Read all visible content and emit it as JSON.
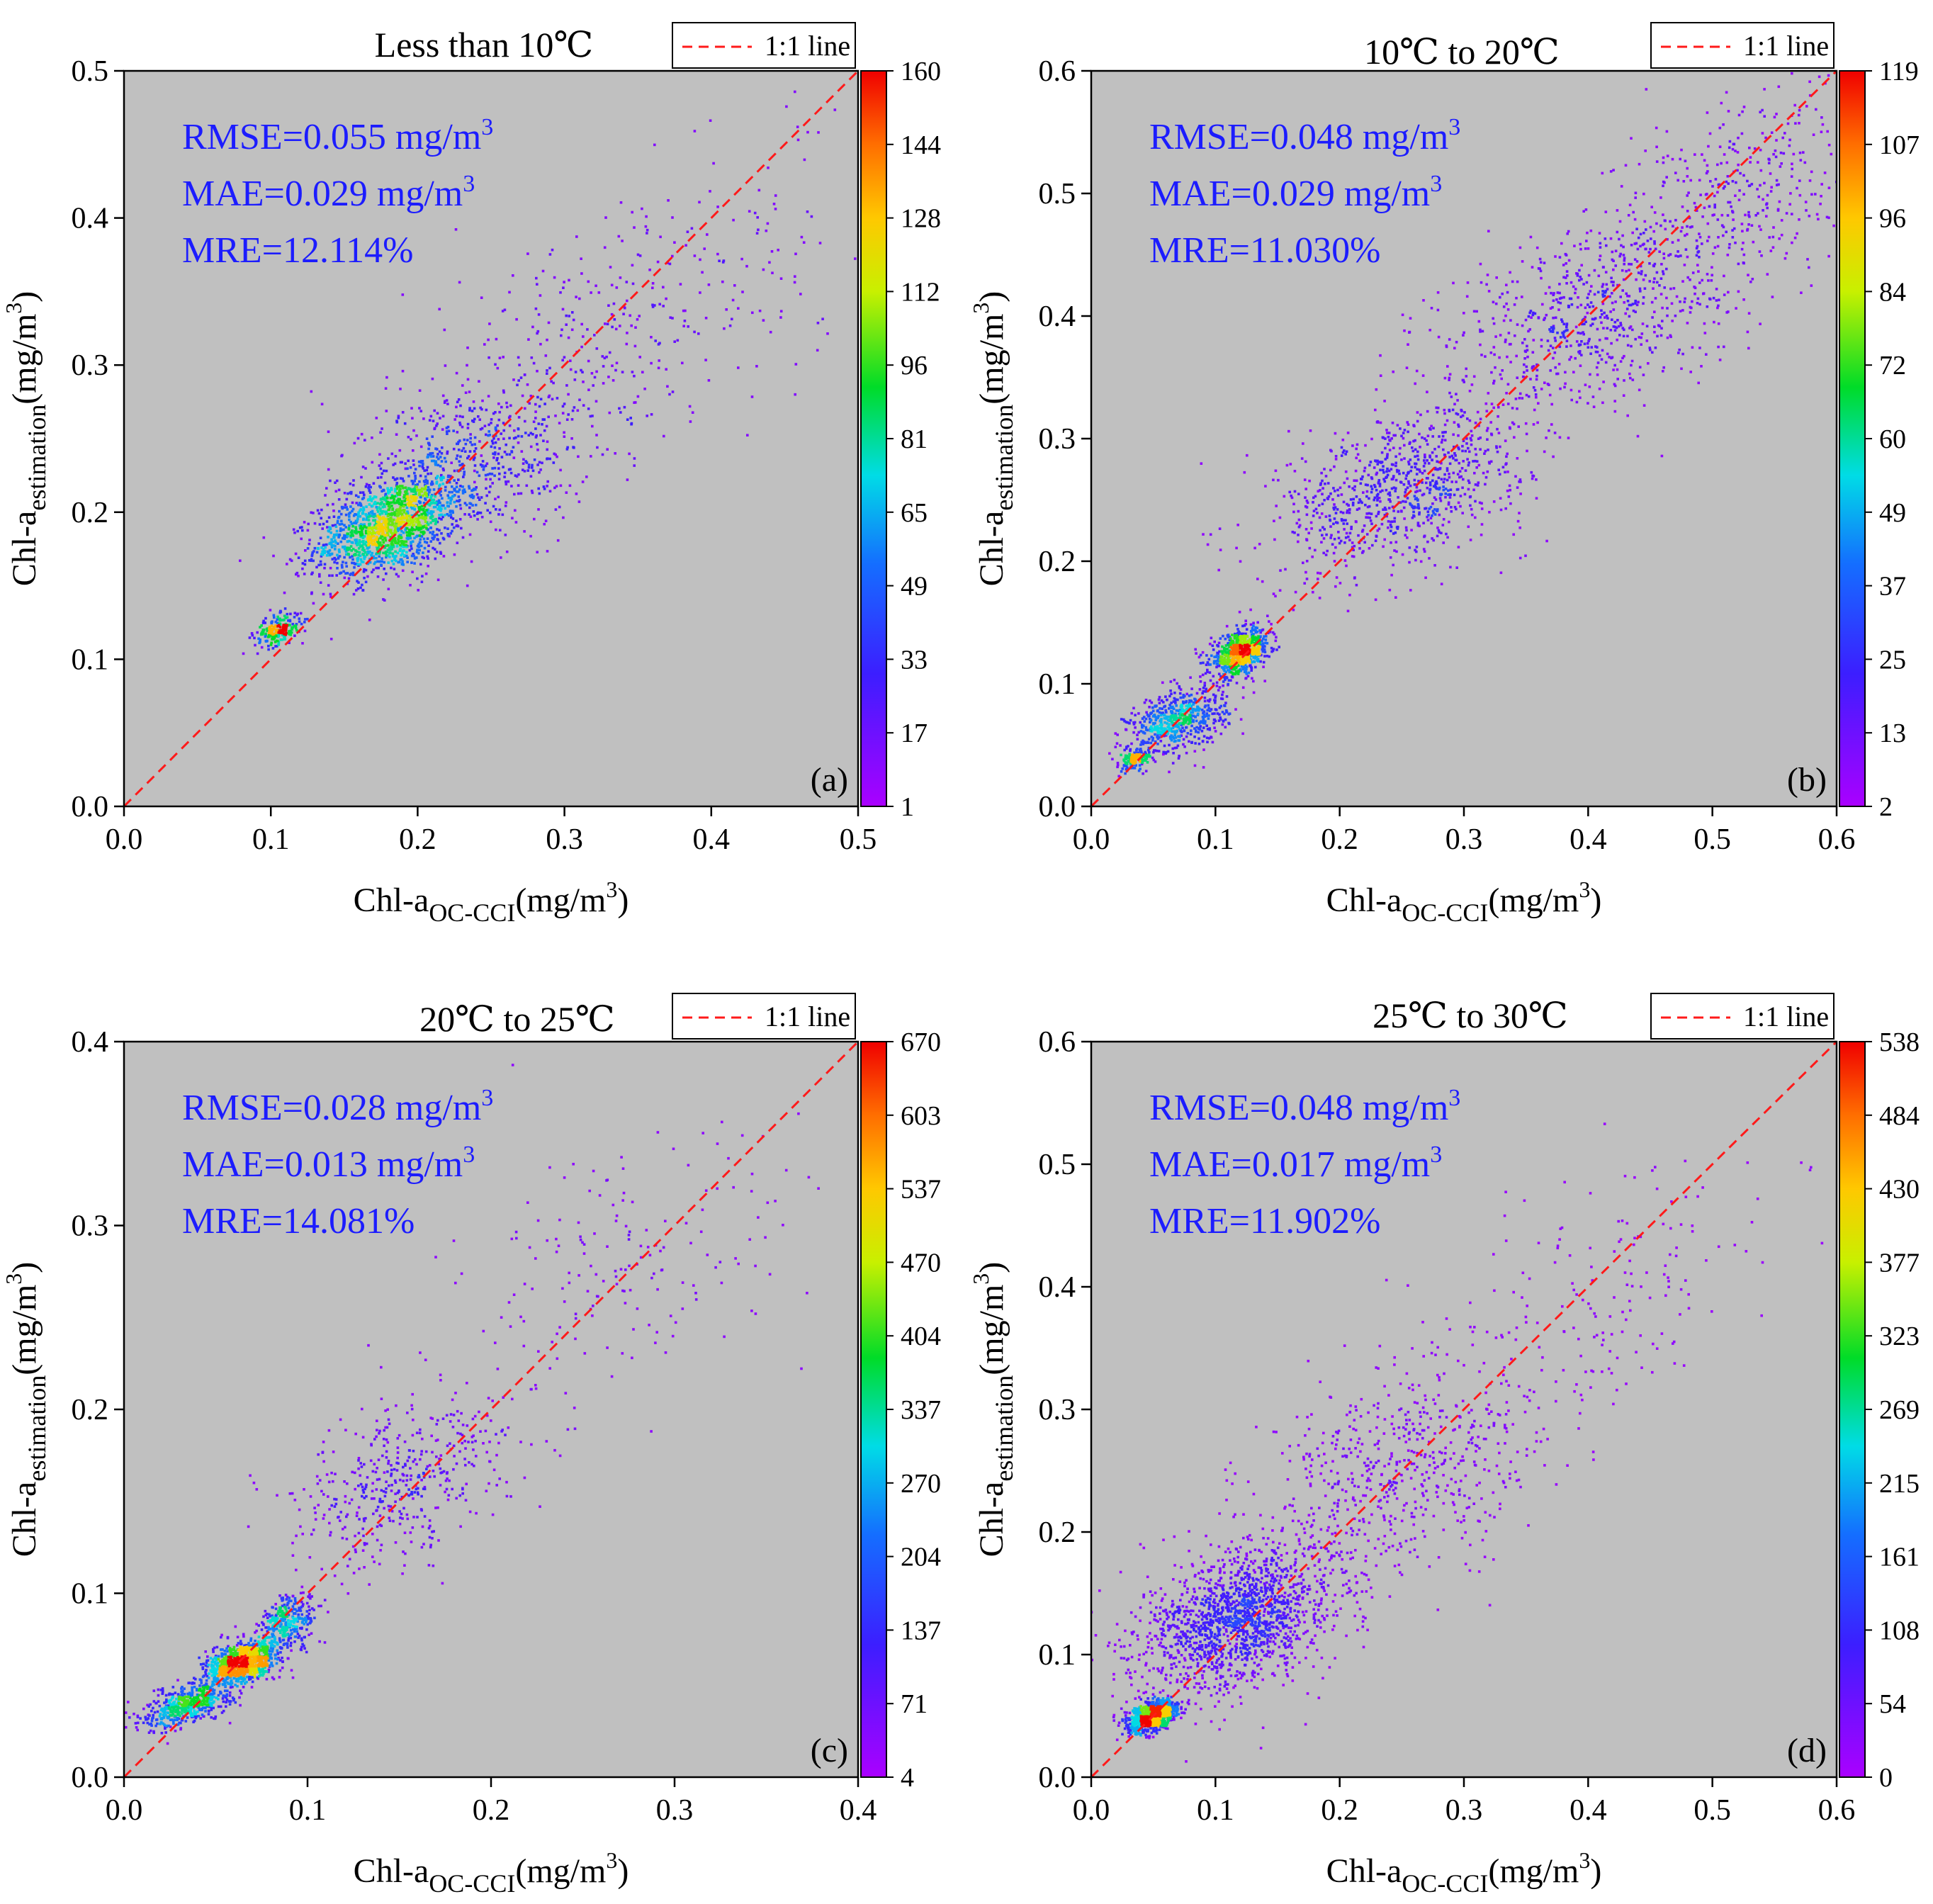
{
  "chart_data": [
    {
      "type": "scatter",
      "panel_label": "(a)",
      "title": "Less than 10℃",
      "xlabel": {
        "main": "Chl-a",
        "sub": "OC-CCI",
        "unit_pre": "(mg/m",
        "unit_sup": "3",
        "unit_post": ")"
      },
      "ylabel": {
        "main": "Chl-a",
        "sub": "estimation",
        "unit_pre": "(mg/m",
        "unit_sup": "3",
        "unit_post": ")"
      },
      "xlim": [
        0,
        0.5
      ],
      "ylim": [
        0,
        0.5
      ],
      "xticks": [
        "0.0",
        "0.1",
        "0.2",
        "0.3",
        "0.4",
        "0.5"
      ],
      "yticks": [
        "0.0",
        "0.1",
        "0.2",
        "0.3",
        "0.4",
        "0.5"
      ],
      "legend": "1:1 line",
      "colorbar_ticks": [
        "1",
        "17",
        "33",
        "49",
        "65",
        "81",
        "96",
        "112",
        "128",
        "144",
        "160"
      ],
      "stats": [
        {
          "pre": "RMSE=0.055 mg/m",
          "sup": "3"
        },
        {
          "pre": "MAE=0.029 mg/m",
          "sup": "3"
        },
        {
          "pre": "MRE=12.114%",
          "sup": ""
        }
      ],
      "density_clusters": [
        {
          "x": 0.18,
          "y": 0.19,
          "sx": 0.025,
          "sy": 0.022,
          "n": 1300
        },
        {
          "x": 0.105,
          "y": 0.12,
          "sx": 0.008,
          "sy": 0.007,
          "n": 220
        },
        {
          "x": 0.23,
          "y": 0.23,
          "sx": 0.045,
          "sy": 0.04,
          "n": 700
        },
        {
          "x": 0.32,
          "y": 0.32,
          "sx": 0.06,
          "sy": 0.06,
          "n": 250
        },
        {
          "x": 0.42,
          "y": 0.37,
          "sx": 0.06,
          "sy": 0.07,
          "n": 90
        }
      ]
    },
    {
      "type": "scatter",
      "panel_label": "(b)",
      "title": "10℃ to 20℃",
      "xlabel": {
        "main": "Chl-a",
        "sub": "OC-CCI",
        "unit_pre": "(mg/m",
        "unit_sup": "3",
        "unit_post": ")"
      },
      "ylabel": {
        "main": "Chl-a",
        "sub": "estimation",
        "unit_pre": "(mg/m",
        "unit_sup": "3",
        "unit_post": ")"
      },
      "xlim": [
        0,
        0.6
      ],
      "ylim": [
        0,
        0.6
      ],
      "xticks": [
        "0.0",
        "0.1",
        "0.2",
        "0.3",
        "0.4",
        "0.5",
        "0.6"
      ],
      "yticks": [
        "0.0",
        "0.1",
        "0.2",
        "0.3",
        "0.4",
        "0.5",
        "0.6"
      ],
      "legend": "1:1 line",
      "colorbar_ticks": [
        "2",
        "13",
        "25",
        "37",
        "49",
        "60",
        "72",
        "84",
        "96",
        "107",
        "119"
      ],
      "stats": [
        {
          "pre": "RMSE=0.048 mg/m",
          "sup": "3"
        },
        {
          "pre": "MAE=0.029 mg/m",
          "sup": "3"
        },
        {
          "pre": "MRE=11.030%",
          "sup": ""
        }
      ],
      "density_clusters": [
        {
          "x": 0.12,
          "y": 0.125,
          "sx": 0.012,
          "sy": 0.012,
          "n": 700
        },
        {
          "x": 0.07,
          "y": 0.07,
          "sx": 0.02,
          "sy": 0.018,
          "n": 600
        },
        {
          "x": 0.035,
          "y": 0.038,
          "sx": 0.006,
          "sy": 0.005,
          "n": 150
        },
        {
          "x": 0.25,
          "y": 0.26,
          "sx": 0.05,
          "sy": 0.045,
          "n": 900
        },
        {
          "x": 0.4,
          "y": 0.4,
          "sx": 0.06,
          "sy": 0.055,
          "n": 700
        },
        {
          "x": 0.52,
          "y": 0.5,
          "sx": 0.05,
          "sy": 0.06,
          "n": 350
        }
      ]
    },
    {
      "type": "scatter",
      "panel_label": "(c)",
      "title": "20℃ to 25℃",
      "xlabel": {
        "main": "Chl-a",
        "sub": "OC-CCI",
        "unit_pre": "(mg/m",
        "unit_sup": "3",
        "unit_post": ")"
      },
      "ylabel": {
        "main": "Chl-a",
        "sub": "estimation",
        "unit_pre": "(mg/m",
        "unit_sup": "3",
        "unit_post": ")"
      },
      "xlim": [
        0,
        0.4
      ],
      "ylim": [
        0,
        0.4
      ],
      "xticks": [
        "0.0",
        "0.1",
        "0.2",
        "0.3",
        "0.4"
      ],
      "yticks": [
        "0.0",
        "0.1",
        "0.2",
        "0.3",
        "0.4"
      ],
      "legend": "1:1 line",
      "colorbar_ticks": [
        "4",
        "71",
        "137",
        "204",
        "270",
        "337",
        "404",
        "470",
        "537",
        "603",
        "670"
      ],
      "stats": [
        {
          "pre": "RMSE=0.028 mg/m",
          "sup": "3"
        },
        {
          "pre": "MAE=0.013 mg/m",
          "sup": "3"
        },
        {
          "pre": "MRE=14.081%",
          "sup": ""
        }
      ],
      "density_clusters": [
        {
          "x": 0.065,
          "y": 0.062,
          "sx": 0.01,
          "sy": 0.008,
          "n": 900
        },
        {
          "x": 0.035,
          "y": 0.04,
          "sx": 0.012,
          "sy": 0.008,
          "n": 500
        },
        {
          "x": 0.09,
          "y": 0.085,
          "sx": 0.008,
          "sy": 0.01,
          "n": 300
        },
        {
          "x": 0.15,
          "y": 0.16,
          "sx": 0.03,
          "sy": 0.03,
          "n": 450
        },
        {
          "x": 0.27,
          "y": 0.27,
          "sx": 0.05,
          "sy": 0.05,
          "n": 180
        }
      ]
    },
    {
      "type": "scatter",
      "panel_label": "(d)",
      "title": "25℃ to 30℃",
      "xlabel": {
        "main": "Chl-a",
        "sub": "OC-CCI",
        "unit_pre": "(mg/m",
        "unit_sup": "3",
        "unit_post": ")"
      },
      "ylabel": {
        "main": "Chl-a",
        "sub": "estimation",
        "unit_pre": "(mg/m",
        "unit_sup": "3",
        "unit_post": ")"
      },
      "xlim": [
        0,
        0.6
      ],
      "ylim": [
        0,
        0.6
      ],
      "xticks": [
        "0.0",
        "0.1",
        "0.2",
        "0.3",
        "0.4",
        "0.5",
        "0.6"
      ],
      "yticks": [
        "0.0",
        "0.1",
        "0.2",
        "0.3",
        "0.4",
        "0.5",
        "0.6"
      ],
      "legend": "1:1 line",
      "colorbar_ticks": [
        "0",
        "54",
        "108",
        "161",
        "215",
        "269",
        "323",
        "377",
        "430",
        "484",
        "538"
      ],
      "stats": [
        {
          "pre": "RMSE=0.048 mg/m",
          "sup": "3"
        },
        {
          "pre": "MAE=0.017 mg/m",
          "sup": "3"
        },
        {
          "pre": "MRE=11.902%",
          "sup": ""
        }
      ],
      "density_clusters": [
        {
          "x": 0.05,
          "y": 0.05,
          "sx": 0.01,
          "sy": 0.008,
          "n": 900
        },
        {
          "x": 0.12,
          "y": 0.13,
          "sx": 0.04,
          "sy": 0.04,
          "n": 1600
        },
        {
          "x": 0.25,
          "y": 0.25,
          "sx": 0.06,
          "sy": 0.06,
          "n": 600
        },
        {
          "x": 0.42,
          "y": 0.4,
          "sx": 0.07,
          "sy": 0.07,
          "n": 160
        }
      ]
    }
  ]
}
